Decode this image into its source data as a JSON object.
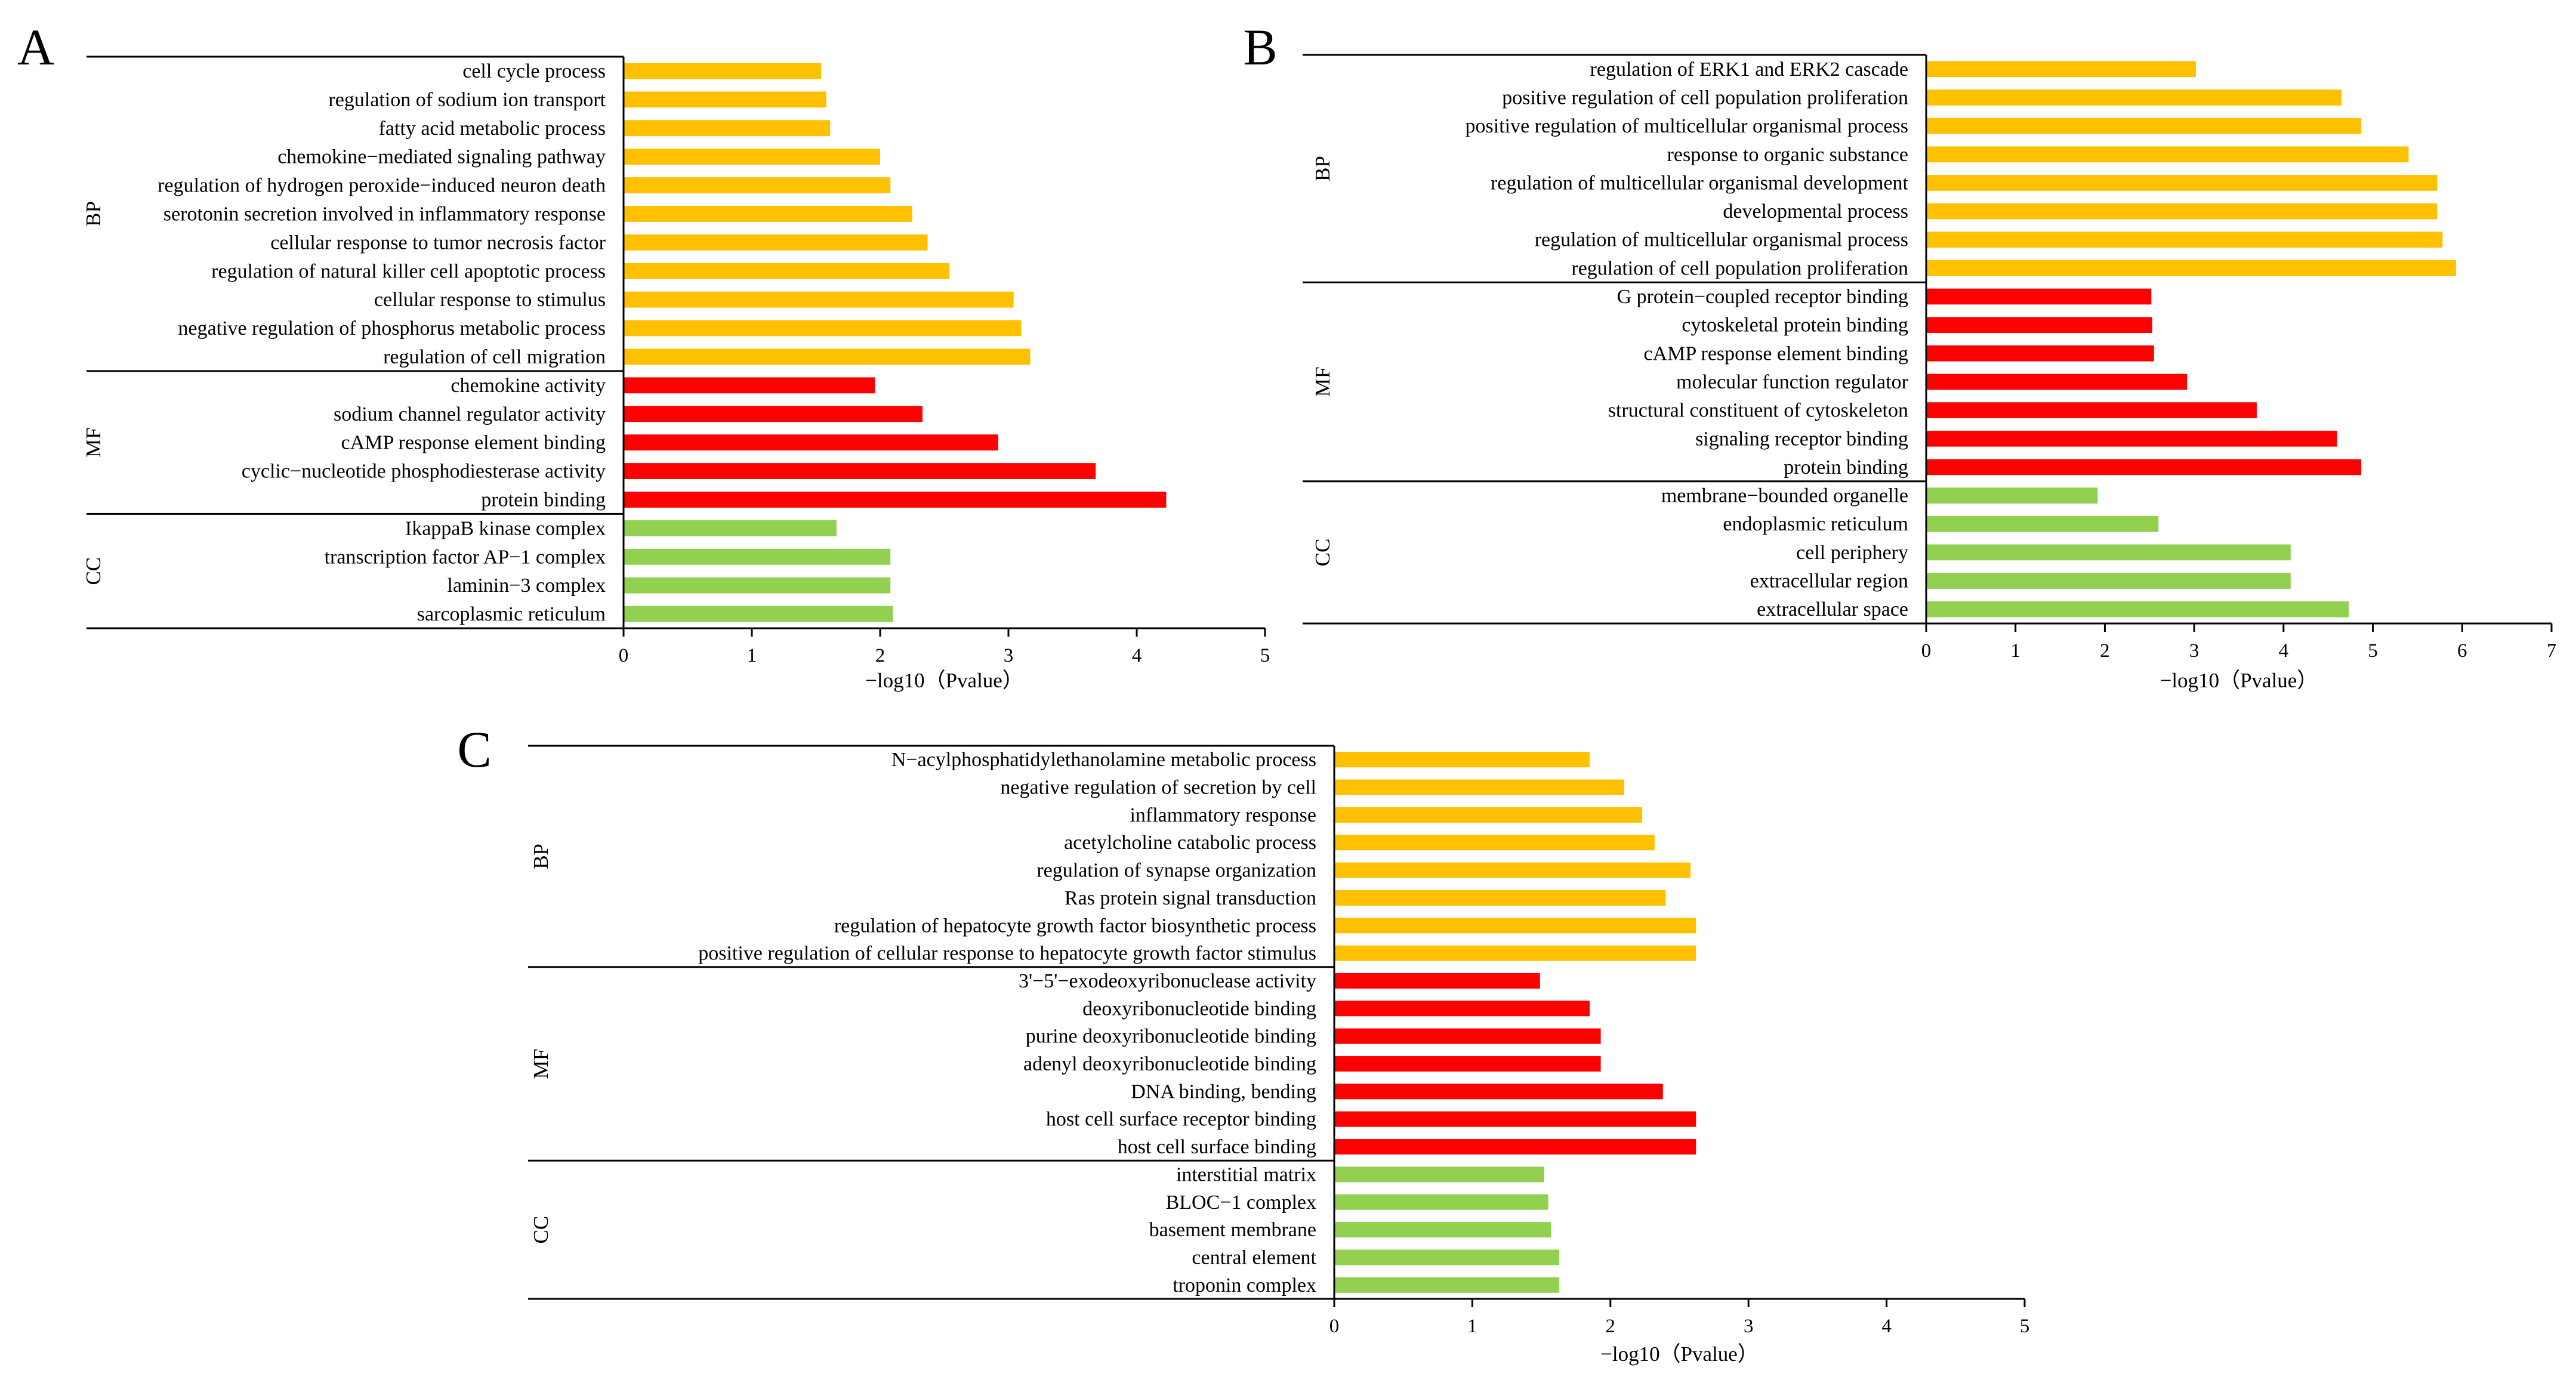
{
  "figure": {
    "panel_letters": [
      "A",
      "B",
      "C"
    ]
  },
  "colors": {
    "BP": "#FFC000",
    "MF": "#FF0000",
    "CC": "#92D050"
  },
  "chart_data": [
    {
      "type": "bar",
      "orientation": "horizontal",
      "panel": "A",
      "xlabel": "−log10（Pvalue）",
      "xlim": [
        0,
        5
      ],
      "xticks": [
        "0",
        "1",
        "2",
        "3",
        "4",
        "5"
      ],
      "groups": [
        {
          "name": "BP",
          "categories": [
            "cell cycle process",
            "regulation of sodium ion transport",
            "fatty acid metabolic process",
            "chemokine−mediated signaling pathway",
            "regulation of hydrogen peroxide−induced neuron death",
            "serotonin secretion involved in inflammatory response",
            "cellular response to tumor necrosis factor",
            "regulation of natural killer cell apoptotic process",
            "cellular response to stimulus",
            "negative regulation of phosphorus metabolic process",
            "regulation of cell migration"
          ],
          "values": [
            1.54,
            1.58,
            1.61,
            2.0,
            2.08,
            2.25,
            2.37,
            2.54,
            3.04,
            3.1,
            3.17
          ]
        },
        {
          "name": "MF",
          "categories": [
            "chemokine activity",
            "sodium channel regulator activity",
            "cAMP response element binding",
            "cyclic−nucleotide phosphodiesterase activity",
            "protein binding"
          ],
          "values": [
            1.96,
            2.33,
            2.92,
            3.68,
            4.23
          ]
        },
        {
          "name": "CC",
          "categories": [
            "IkappaB kinase complex",
            "transcription factor AP−1 complex",
            "laminin−3 complex",
            "sarcoplasmic reticulum"
          ],
          "values": [
            1.66,
            2.08,
            2.08,
            2.1
          ]
        }
      ]
    },
    {
      "type": "bar",
      "orientation": "horizontal",
      "panel": "B",
      "xlabel": "−log10（Pvalue）",
      "xlim": [
        0,
        7
      ],
      "xticks": [
        "0",
        "1",
        "2",
        "3",
        "4",
        "5",
        "6",
        "7"
      ],
      "groups": [
        {
          "name": "BP",
          "categories": [
            "regulation of ERK1 and ERK2 cascade",
            "positive regulation of cell population proliferation",
            "positive regulation of multicellular organismal process",
            "response to organic substance",
            "regulation of multicellular organismal development",
            "developmental process",
            "regulation of multicellular organismal process",
            "regulation of cell population proliferation"
          ],
          "values": [
            3.02,
            4.65,
            4.87,
            5.4,
            5.72,
            5.72,
            5.78,
            5.93
          ]
        },
        {
          "name": "MF",
          "categories": [
            "G protein−coupled receptor binding",
            "cytoskeletal protein binding",
            "cAMP response element binding",
            "molecular function regulator",
            "structural constituent of cytoskeleton",
            "signaling receptor binding",
            "protein binding"
          ],
          "values": [
            2.52,
            2.53,
            2.55,
            2.92,
            3.7,
            4.6,
            4.87
          ]
        },
        {
          "name": "CC",
          "categories": [
            "membrane−bounded organelle",
            "endoplasmic reticulum",
            "cell periphery",
            "extracellular region",
            "extracellular space"
          ],
          "values": [
            1.92,
            2.6,
            4.08,
            4.08,
            4.73
          ]
        }
      ]
    },
    {
      "type": "bar",
      "orientation": "horizontal",
      "panel": "C",
      "xlabel": "−log10（Pvalue）",
      "xlim": [
        0,
        5
      ],
      "xticks": [
        "0",
        "1",
        "2",
        "3",
        "4",
        "5"
      ],
      "groups": [
        {
          "name": "BP",
          "categories": [
            "N−acylphosphatidylethanolamine metabolic process",
            "negative regulation of secretion by cell",
            "inflammatory response",
            "acetylcholine catabolic process",
            "regulation of synapse organization",
            "Ras protein signal transduction",
            "regulation of hepatocyte growth factor biosynthetic process",
            "positive regulation of cellular response to hepatocyte growth factor stimulus"
          ],
          "values": [
            1.85,
            2.1,
            2.23,
            2.32,
            2.58,
            2.4,
            2.62,
            2.62
          ]
        },
        {
          "name": "MF",
          "categories": [
            "3'−5'−exodeoxyribonuclease activity",
            "deoxyribonucleotide binding",
            "purine deoxyribonucleotide binding",
            "adenyl deoxyribonucleotide binding",
            "DNA binding, bending",
            "host cell surface receptor binding",
            "host cell surface binding"
          ],
          "values": [
            1.49,
            1.85,
            1.93,
            1.93,
            2.38,
            2.62,
            2.62
          ]
        },
        {
          "name": "CC",
          "categories": [
            "interstitial matrix",
            "BLOC−1 complex",
            "basement membrane",
            "central element",
            "troponin complex"
          ],
          "values": [
            1.52,
            1.55,
            1.57,
            1.63,
            1.63
          ]
        }
      ]
    }
  ]
}
